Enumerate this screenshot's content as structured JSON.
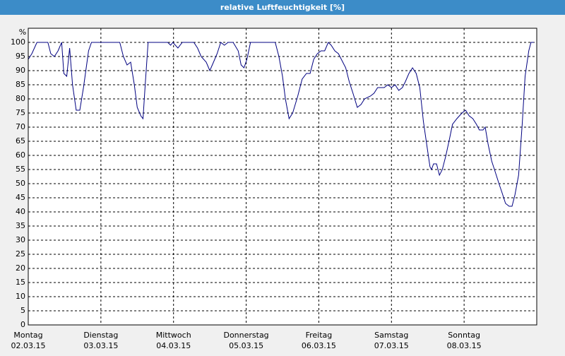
{
  "chart_data": {
    "type": "line",
    "title": "relative Luftfeuchtigkeit [%]",
    "y_label": "%",
    "color": "#000080",
    "grid": true,
    "xlim": [
      0,
      7
    ],
    "ylim": [
      0,
      105
    ],
    "yticks": [
      0,
      5,
      10,
      15,
      20,
      25,
      30,
      35,
      40,
      45,
      50,
      55,
      60,
      65,
      70,
      75,
      80,
      85,
      90,
      95,
      100
    ],
    "xticks": [
      {
        "value": 0,
        "label": "Montag",
        "date": "02.03.15"
      },
      {
        "value": 1,
        "label": "Dienstag",
        "date": "03.03.15"
      },
      {
        "value": 2,
        "label": "Mittwoch",
        "date": "04.03.15"
      },
      {
        "value": 3,
        "label": "Donnerstag",
        "date": "05.03.15"
      },
      {
        "value": 4,
        "label": "Freitag",
        "date": "06.03.15"
      },
      {
        "value": 5,
        "label": "Samstag",
        "date": "07.03.15"
      },
      {
        "value": 6,
        "label": "Sonntag",
        "date": "08.03.15"
      }
    ],
    "x": [
      0,
      0.05,
      0.12,
      0.27,
      0.31,
      0.36,
      0.41,
      0.46,
      0.49,
      0.53,
      0.57,
      0.61,
      0.66,
      0.71,
      0.76,
      0.83,
      0.87,
      1.26,
      1.31,
      1.36,
      1.41,
      1.46,
      1.5,
      1.55,
      1.58,
      1.61,
      1.65,
      1.92,
      1.96,
      1.99,
      2.06,
      2.12,
      2.28,
      2.33,
      2.38,
      2.45,
      2.5,
      2.55,
      2.6,
      2.65,
      2.7,
      2.75,
      2.82,
      2.89,
      2.93,
      2.97,
      3.01,
      3.06,
      3.4,
      3.45,
      3.5,
      3.54,
      3.59,
      3.64,
      3.71,
      3.77,
      3.83,
      3.88,
      3.93,
      3.98,
      4.03,
      4.08,
      4.13,
      4.17,
      4.22,
      4.27,
      4.37,
      4.42,
      4.47,
      4.53,
      4.58,
      4.63,
      4.71,
      4.76,
      4.81,
      4.85,
      4.9,
      4.95,
      5,
      5.05,
      5.1,
      5.15,
      5.19,
      5.24,
      5.29,
      5.34,
      5.39,
      5.44,
      5.49,
      5.53,
      5.55,
      5.58,
      5.62,
      5.66,
      5.7,
      5.75,
      5.8,
      5.84,
      5.9,
      5.97,
      6.02,
      6.07,
      6.12,
      6.17,
      6.21,
      6.26,
      6.29,
      6.33,
      6.38,
      6.43,
      6.48,
      6.52,
      6.57,
      6.62,
      6.66,
      6.7,
      6.75,
      6.8,
      6.84,
      6.89,
      6.92,
      6.96
    ],
    "values": [
      94,
      96,
      100,
      100,
      96,
      95,
      97,
      100,
      89,
      88,
      98,
      85,
      76,
      76,
      84,
      97,
      100,
      100,
      95,
      92,
      93,
      85,
      77,
      74,
      73,
      85,
      100,
      100,
      99,
      100,
      98,
      100,
      100,
      98,
      95,
      93,
      90,
      93,
      96,
      100,
      99,
      100,
      100,
      97,
      92,
      91,
      94,
      100,
      100,
      95,
      88,
      80,
      73,
      75,
      81,
      87,
      89,
      89,
      94,
      96,
      97,
      97,
      100,
      99,
      97,
      96,
      91,
      86,
      82,
      77,
      78,
      80,
      81,
      82,
      84,
      84,
      84,
      85,
      84,
      85,
      83,
      84,
      86,
      89,
      91,
      89,
      84,
      72,
      63,
      56,
      55,
      57,
      57,
      53,
      55,
      60,
      66,
      71,
      73,
      75,
      76,
      74,
      73,
      71,
      69,
      69,
      70,
      64,
      58,
      54,
      50,
      47,
      43,
      42,
      42,
      46,
      53,
      71,
      88,
      97,
      100,
      100
    ]
  }
}
